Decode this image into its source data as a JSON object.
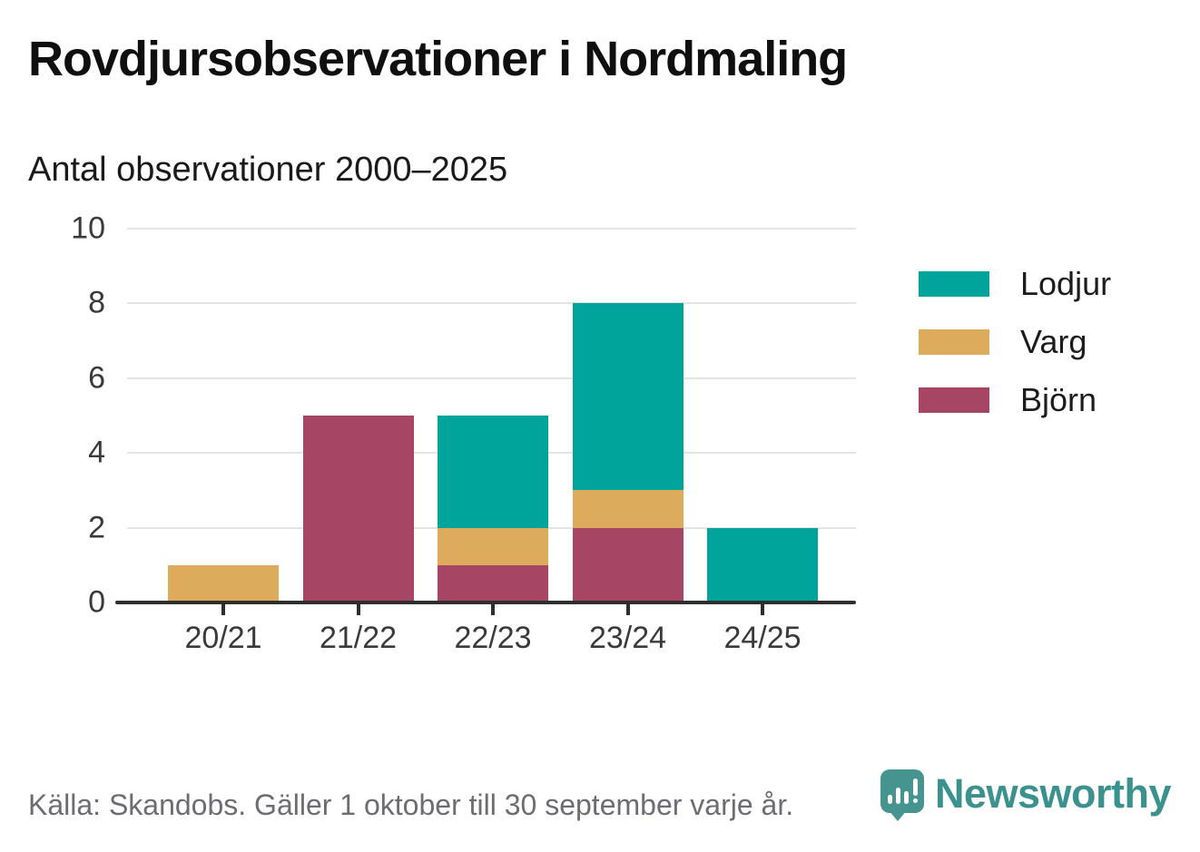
{
  "header": {
    "title": "Rovdjursobservationer i Nordmaling",
    "subtitle": "Antal observationer 2000–2025"
  },
  "chart_data": {
    "type": "bar",
    "stacked": true,
    "title": "Rovdjursobservationer i Nordmaling",
    "subtitle": "Antal observationer 2000–2025",
    "categories": [
      "20/21",
      "21/22",
      "22/23",
      "23/24",
      "24/25"
    ],
    "series": [
      {
        "name": "Björn",
        "color": "#a64564",
        "values": [
          0,
          5,
          1,
          2,
          0
        ]
      },
      {
        "name": "Varg",
        "color": "#dcab5c",
        "values": [
          1,
          0,
          1,
          1,
          0
        ]
      },
      {
        "name": "Lodjur",
        "color": "#00a49b",
        "values": [
          0,
          0,
          3,
          5,
          2
        ]
      }
    ],
    "totals": [
      1,
      5,
      5,
      8,
      2
    ],
    "legend_order": [
      "Lodjur",
      "Varg",
      "Björn"
    ],
    "legend_position": "right",
    "xlabel": "",
    "ylabel": "",
    "ylim": [
      0,
      10
    ],
    "yticks": [
      0,
      2,
      4,
      6,
      8,
      10
    ],
    "grid": true
  },
  "footer": {
    "source_text": "Källa: Skandobs. Gäller 1 oktober till 30 september varje år.",
    "brand_name": "Newsworthy",
    "brand_color": "#3a918d"
  },
  "colors": {
    "lodjur": "#00a49b",
    "varg": "#dcab5c",
    "bjorn": "#a64564",
    "axis": "#2e2e2e",
    "gridline": "#e4e4e4",
    "tick_text": "#3a3a3a",
    "source_text": "#6c6c72"
  }
}
